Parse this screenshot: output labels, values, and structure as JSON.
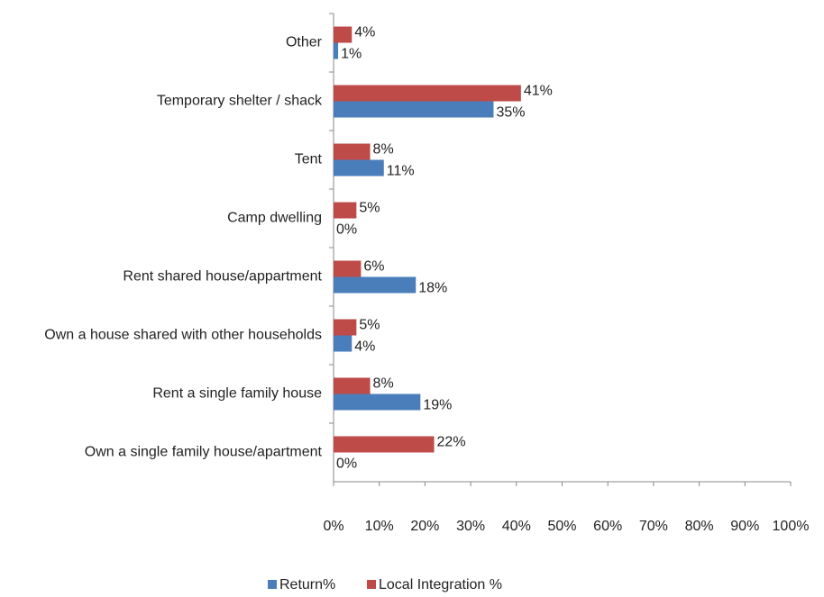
{
  "chart_data": {
    "type": "barh",
    "categories": [
      "Other",
      "Temporary shelter / shack",
      "Tent",
      "Camp dwelling",
      "Rent shared house/appartment",
      "Own a house shared with other households",
      "Rent a single family house",
      "Own a single family house/apartment"
    ],
    "series": [
      {
        "name": "Return%",
        "color": "#4a7ebb",
        "values": [
          1,
          35,
          11,
          0,
          18,
          4,
          19,
          0
        ],
        "value_labels": [
          "1%",
          "35%",
          "11%",
          "0%",
          "18%",
          "4%",
          "19%",
          "0%"
        ]
      },
      {
        "name": "Local Integration %",
        "color": "#be4b48",
        "values": [
          4,
          41,
          8,
          5,
          6,
          5,
          8,
          22
        ],
        "value_labels": [
          "4%",
          "41%",
          "8%",
          "5%",
          "6%",
          "5%",
          "8%",
          "22%"
        ]
      }
    ],
    "xlim": [
      0,
      100
    ],
    "xticks": [
      {
        "value": 0,
        "label": "0%"
      },
      {
        "value": 10,
        "label": "10%"
      },
      {
        "value": 20,
        "label": "20%"
      },
      {
        "value": 30,
        "label": "30%"
      },
      {
        "value": 40,
        "label": "40%"
      },
      {
        "value": 50,
        "label": "50%"
      },
      {
        "value": 60,
        "label": "60%"
      },
      {
        "value": 70,
        "label": "70%"
      },
      {
        "value": 80,
        "label": "80%"
      },
      {
        "value": 90,
        "label": "90%"
      },
      {
        "value": 100,
        "label": "100%"
      }
    ],
    "legend": "bottom"
  }
}
